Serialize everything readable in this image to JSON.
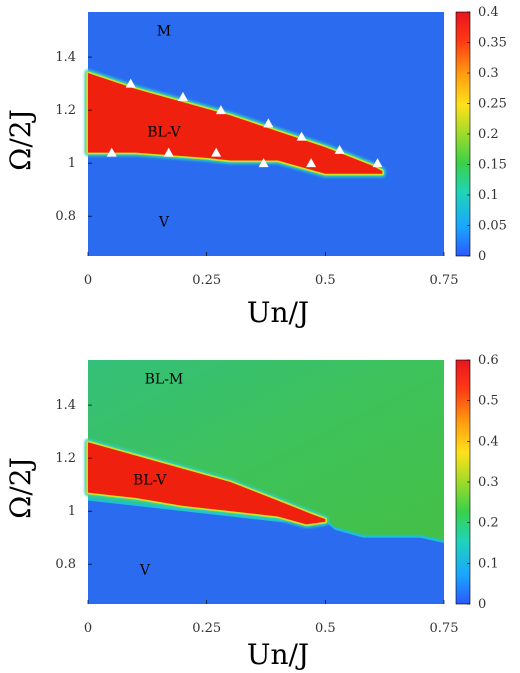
{
  "chart_data": [
    {
      "type": "heatmap",
      "xlabel": "Un/J",
      "ylabel": "Ω/2J",
      "xlim": [
        0,
        0.75
      ],
      "ylim": [
        0.65,
        1.57
      ],
      "xticks": [
        "0",
        "0.25",
        "0.5",
        "0.75"
      ],
      "yticks": [
        "0.8",
        "1",
        "1.2",
        "1.4"
      ],
      "colorbar": {
        "min": 0,
        "max": 0.4,
        "ticks": [
          "0",
          "0.05",
          "0.1",
          "0.15",
          "0.2",
          "0.25",
          "0.3",
          "0.35",
          "0.4"
        ]
      },
      "background_value": 0.0,
      "regions": [
        {
          "label": "M",
          "x": 0.16,
          "y": 1.5
        },
        {
          "label": "BL-V",
          "x": 0.16,
          "y": 1.12
        },
        {
          "label": "V",
          "x": 0.16,
          "y": 0.78
        }
      ],
      "band": {
        "value": 0.33,
        "upper": [
          [
            0,
            1.34
          ],
          [
            0.1,
            1.28
          ],
          [
            0.2,
            1.23
          ],
          [
            0.3,
            1.18
          ],
          [
            0.4,
            1.12
          ],
          [
            0.5,
            1.06
          ],
          [
            0.6,
            0.99
          ],
          [
            0.62,
            0.97
          ]
        ],
        "lower": [
          [
            0.62,
            0.96
          ],
          [
            0.5,
            0.96
          ],
          [
            0.48,
            0.97
          ],
          [
            0.4,
            1.01
          ],
          [
            0.3,
            1.01
          ],
          [
            0.25,
            1.02
          ],
          [
            0.1,
            1.04
          ],
          [
            0,
            1.04
          ]
        ]
      },
      "markers": [
        [
          0.05,
          1.04
        ],
        [
          0.09,
          1.3
        ],
        [
          0.17,
          1.04
        ],
        [
          0.2,
          1.25
        ],
        [
          0.27,
          1.04
        ],
        [
          0.28,
          1.2
        ],
        [
          0.37,
          1.0
        ],
        [
          0.38,
          1.15
        ],
        [
          0.45,
          1.1
        ],
        [
          0.47,
          1.0
        ],
        [
          0.53,
          1.05
        ],
        [
          0.61,
          1.0
        ]
      ]
    },
    {
      "type": "heatmap",
      "xlabel": "Un/J",
      "ylabel": "Ω/2J",
      "xlim": [
        0,
        0.75
      ],
      "ylim": [
        0.65,
        1.57
      ],
      "xticks": [
        "0",
        "0.25",
        "0.5",
        "0.75"
      ],
      "yticks": [
        "0.8",
        "1",
        "1.2",
        "1.4"
      ],
      "colorbar": {
        "min": 0,
        "max": 0.6,
        "ticks": [
          "0",
          "0.1",
          "0.2",
          "0.3",
          "0.4",
          "0.5",
          "0.6"
        ]
      },
      "background_value": 0.0,
      "regions": [
        {
          "label": "BL-M",
          "x": 0.16,
          "y": 1.5
        },
        {
          "label": "BL-V",
          "x": 0.13,
          "y": 1.12
        },
        {
          "label": "V",
          "x": 0.12,
          "y": 0.78
        }
      ],
      "upper_region": {
        "value": 0.21,
        "boundary": [
          [
            0,
            1.04
          ],
          [
            0.2,
            1.0
          ],
          [
            0.4,
            0.96
          ],
          [
            0.5,
            0.96
          ],
          [
            0.52,
            0.93
          ],
          [
            0.58,
            0.9
          ],
          [
            0.7,
            0.9
          ],
          [
            0.75,
            0.88
          ]
        ]
      },
      "band": {
        "value": 0.52,
        "upper": [
          [
            0,
            1.26
          ],
          [
            0.1,
            1.21
          ],
          [
            0.2,
            1.16
          ],
          [
            0.3,
            1.11
          ],
          [
            0.4,
            1.04
          ],
          [
            0.47,
            0.99
          ],
          [
            0.5,
            0.97
          ]
        ],
        "lower": [
          [
            0.5,
            0.96
          ],
          [
            0.46,
            0.95
          ],
          [
            0.4,
            0.98
          ],
          [
            0.3,
            1.0
          ],
          [
            0.2,
            1.02
          ],
          [
            0.1,
            1.05
          ],
          [
            0,
            1.07
          ]
        ]
      }
    }
  ]
}
